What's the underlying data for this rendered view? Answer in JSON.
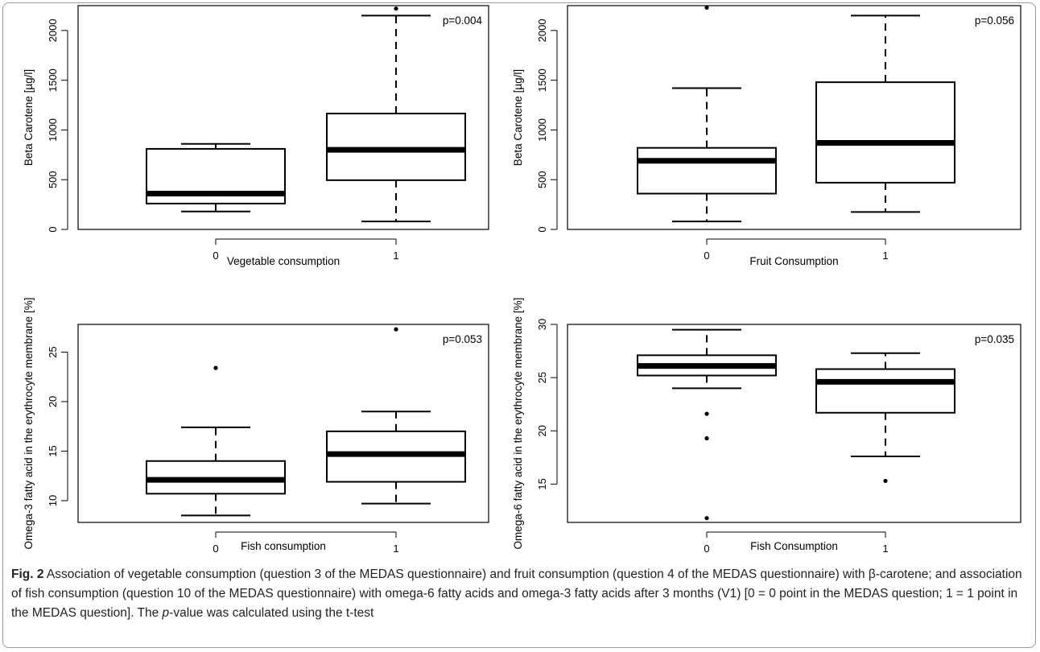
{
  "chart_data": [
    {
      "type": "box",
      "xlabel": "Vegetable consumption",
      "ylabel": "Beta Carotene [µg/l]",
      "annotation": "p=0.004",
      "ylim": [
        0,
        2250
      ],
      "yticks": [
        "0",
        "500",
        "1000",
        "1500",
        "2000"
      ],
      "categories": [
        "0",
        "1"
      ],
      "boxes": [
        {
          "category": "0",
          "whisker_low": 180,
          "q1": 260,
          "median": 360,
          "q3": 810,
          "whisker_high": 860,
          "outliers": []
        },
        {
          "category": "1",
          "whisker_low": 80,
          "q1": 495,
          "median": 800,
          "q3": 1165,
          "whisker_high": 2150,
          "outliers": [
            2220
          ]
        }
      ]
    },
    {
      "type": "box",
      "xlabel": "Fruit Consumption",
      "ylabel": "Beta Carotene [µg/l]",
      "annotation": "p=0.056",
      "ylim": [
        0,
        2250
      ],
      "yticks": [
        "0",
        "500",
        "1000",
        "1500",
        "2000"
      ],
      "categories": [
        "0",
        "1"
      ],
      "boxes": [
        {
          "category": "0",
          "whisker_low": 80,
          "q1": 360,
          "median": 690,
          "q3": 820,
          "whisker_high": 1420,
          "outliers": [
            2230
          ]
        },
        {
          "category": "1",
          "whisker_low": 175,
          "q1": 470,
          "median": 870,
          "q3": 1480,
          "whisker_high": 2150,
          "outliers": []
        }
      ]
    },
    {
      "type": "box",
      "xlabel": "Fish consumption",
      "ylabel": "Omega-3 fatty acid in the erythrocyte membrane [%]",
      "annotation": "p=0.053",
      "ylim": [
        7.8,
        27.8
      ],
      "yticks": [
        "10",
        "15",
        "20",
        "25"
      ],
      "categories": [
        "0",
        "1"
      ],
      "boxes": [
        {
          "category": "0",
          "whisker_low": 8.5,
          "q1": 10.7,
          "median": 12.1,
          "q3": 14.0,
          "whisker_high": 17.4,
          "outliers": [
            23.4
          ]
        },
        {
          "category": "1",
          "whisker_low": 9.7,
          "q1": 11.9,
          "median": 14.7,
          "q3": 17.0,
          "whisker_high": 19.0,
          "outliers": [
            27.3
          ]
        }
      ]
    },
    {
      "type": "box",
      "xlabel": "Fish Consumption",
      "ylabel": "Omega-6 fatty acid in the erythrocyte membrane [%]",
      "annotation": "p=0.035",
      "ylim": [
        11.4,
        30.0
      ],
      "yticks": [
        "15",
        "20",
        "25",
        "30"
      ],
      "categories": [
        "0",
        "1"
      ],
      "boxes": [
        {
          "category": "0",
          "whisker_low": 24.0,
          "q1": 25.2,
          "median": 26.1,
          "q3": 27.1,
          "whisker_high": 29.5,
          "outliers": [
            21.6,
            19.3,
            11.8
          ]
        },
        {
          "category": "1",
          "whisker_low": 17.6,
          "q1": 21.7,
          "median": 24.6,
          "q3": 25.8,
          "whisker_high": 27.3,
          "outliers": [
            15.3
          ]
        }
      ]
    }
  ],
  "caption": {
    "label": "Fig. 2",
    "text_before": " Association of vegetable consumption (question 3 of the MEDAS questionnaire) and fruit consumption (question 4 of the MEDAS questionnaire) with β-carotene; and association of fish consumption (question 10 of the MEDAS questionnaire) with omega-6 fatty acids and omega-3 fatty acids after 3 months (V1) [0 = 0 point in the MEDAS question; 1 = 1 point in the MEDAS question]. The ",
    "italic": "p",
    "text_after": "-value was calculated using the t-test"
  }
}
